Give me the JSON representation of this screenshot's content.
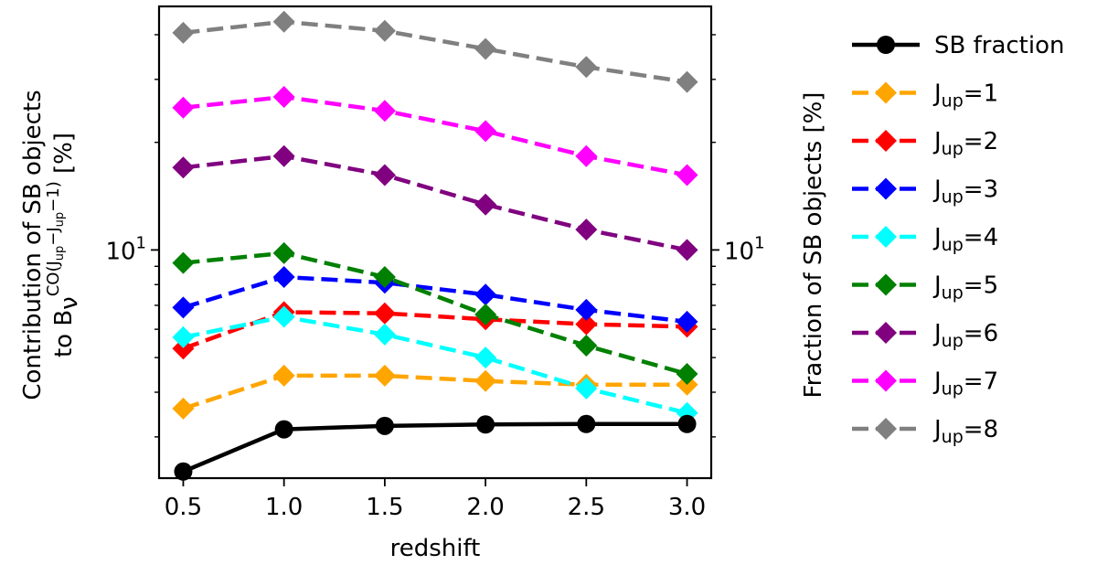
{
  "chart_data": {
    "type": "line",
    "x": [
      0.5,
      1.0,
      1.5,
      2.0,
      2.5,
      3.0
    ],
    "x_ticks": [
      "0.5",
      "1.0",
      "1.5",
      "2.0",
      "2.5",
      "3.0"
    ],
    "xlim": [
      0.38,
      3.12
    ],
    "xlabel": "redshift",
    "yscale": "log",
    "ylim": [
      2.3,
      48
    ],
    "ylabel_left_line1": "Contribution of SB objects",
    "ylabel_left_line2_prefix": "to B",
    "ylabel_left_line2_nu": "ν",
    "ylabel_left_line2_sup": "CO(J",
    "ylabel_left_line2_sup_sub1": "up",
    "ylabel_left_line2_sup_mid": "−J",
    "ylabel_left_line2_sup_sub2": "up",
    "ylabel_left_line2_sup_end": "−1)",
    "ylabel_left_line2_suffix": " [%]",
    "ylabel_right": "Fraction of SB objects [%]",
    "y_major_tick": {
      "value": 10,
      "base": "10",
      "exp": "1"
    },
    "y_minor_ticks": [
      3,
      4,
      5,
      6,
      7,
      8,
      9,
      20,
      30,
      40
    ],
    "legend_position": "outside-right",
    "series": [
      {
        "name": "SB fraction",
        "color": "#000000",
        "style": "solid",
        "marker": "circle",
        "values": [
          2.4,
          3.15,
          3.22,
          3.25,
          3.26,
          3.26
        ]
      },
      {
        "name": "Jup=1",
        "label_main": "J",
        "label_sub": "up",
        "label_tail": "=1",
        "color": "#FFA500",
        "style": "dashed",
        "marker": "diamond",
        "values": [
          3.6,
          4.45,
          4.45,
          4.3,
          4.2,
          4.2
        ]
      },
      {
        "name": "Jup=2",
        "label_main": "J",
        "label_sub": "up",
        "label_tail": "=2",
        "color": "#FF0000",
        "style": "dashed",
        "marker": "diamond",
        "values": [
          5.3,
          6.7,
          6.65,
          6.4,
          6.2,
          6.1
        ]
      },
      {
        "name": "Jup=3",
        "label_main": "J",
        "label_sub": "up",
        "label_tail": "=3",
        "color": "#0000FF",
        "style": "dashed",
        "marker": "diamond",
        "values": [
          6.9,
          8.4,
          8.1,
          7.5,
          6.8,
          6.3
        ]
      },
      {
        "name": "Jup=4",
        "label_main": "J",
        "label_sub": "up",
        "label_tail": "=4",
        "color": "#00FFFF",
        "style": "dashed",
        "marker": "diamond",
        "values": [
          5.7,
          6.5,
          5.8,
          5.0,
          4.1,
          3.5
        ]
      },
      {
        "name": "Jup=5",
        "label_main": "J",
        "label_sub": "up",
        "label_tail": "=5",
        "color": "#008000",
        "style": "dashed",
        "marker": "diamond",
        "values": [
          9.2,
          9.8,
          8.4,
          6.6,
          5.4,
          4.5
        ]
      },
      {
        "name": "Jup=6",
        "label_main": "J",
        "label_sub": "up",
        "label_tail": "=6",
        "color": "#800080",
        "style": "dashed",
        "marker": "diamond",
        "values": [
          17.0,
          18.3,
          16.2,
          13.4,
          11.4,
          10.0
        ]
      },
      {
        "name": "Jup=7",
        "label_main": "J",
        "label_sub": "up",
        "label_tail": "=7",
        "color": "#FF00FF",
        "style": "dashed",
        "marker": "diamond",
        "values": [
          25.0,
          26.8,
          24.5,
          21.5,
          18.3,
          16.2
        ]
      },
      {
        "name": "Jup=8",
        "label_main": "J",
        "label_sub": "up",
        "label_tail": "=8",
        "color": "#808080",
        "style": "dashed",
        "marker": "diamond",
        "values": [
          40.5,
          43.5,
          41.0,
          36.5,
          32.5,
          29.5
        ]
      }
    ]
  }
}
